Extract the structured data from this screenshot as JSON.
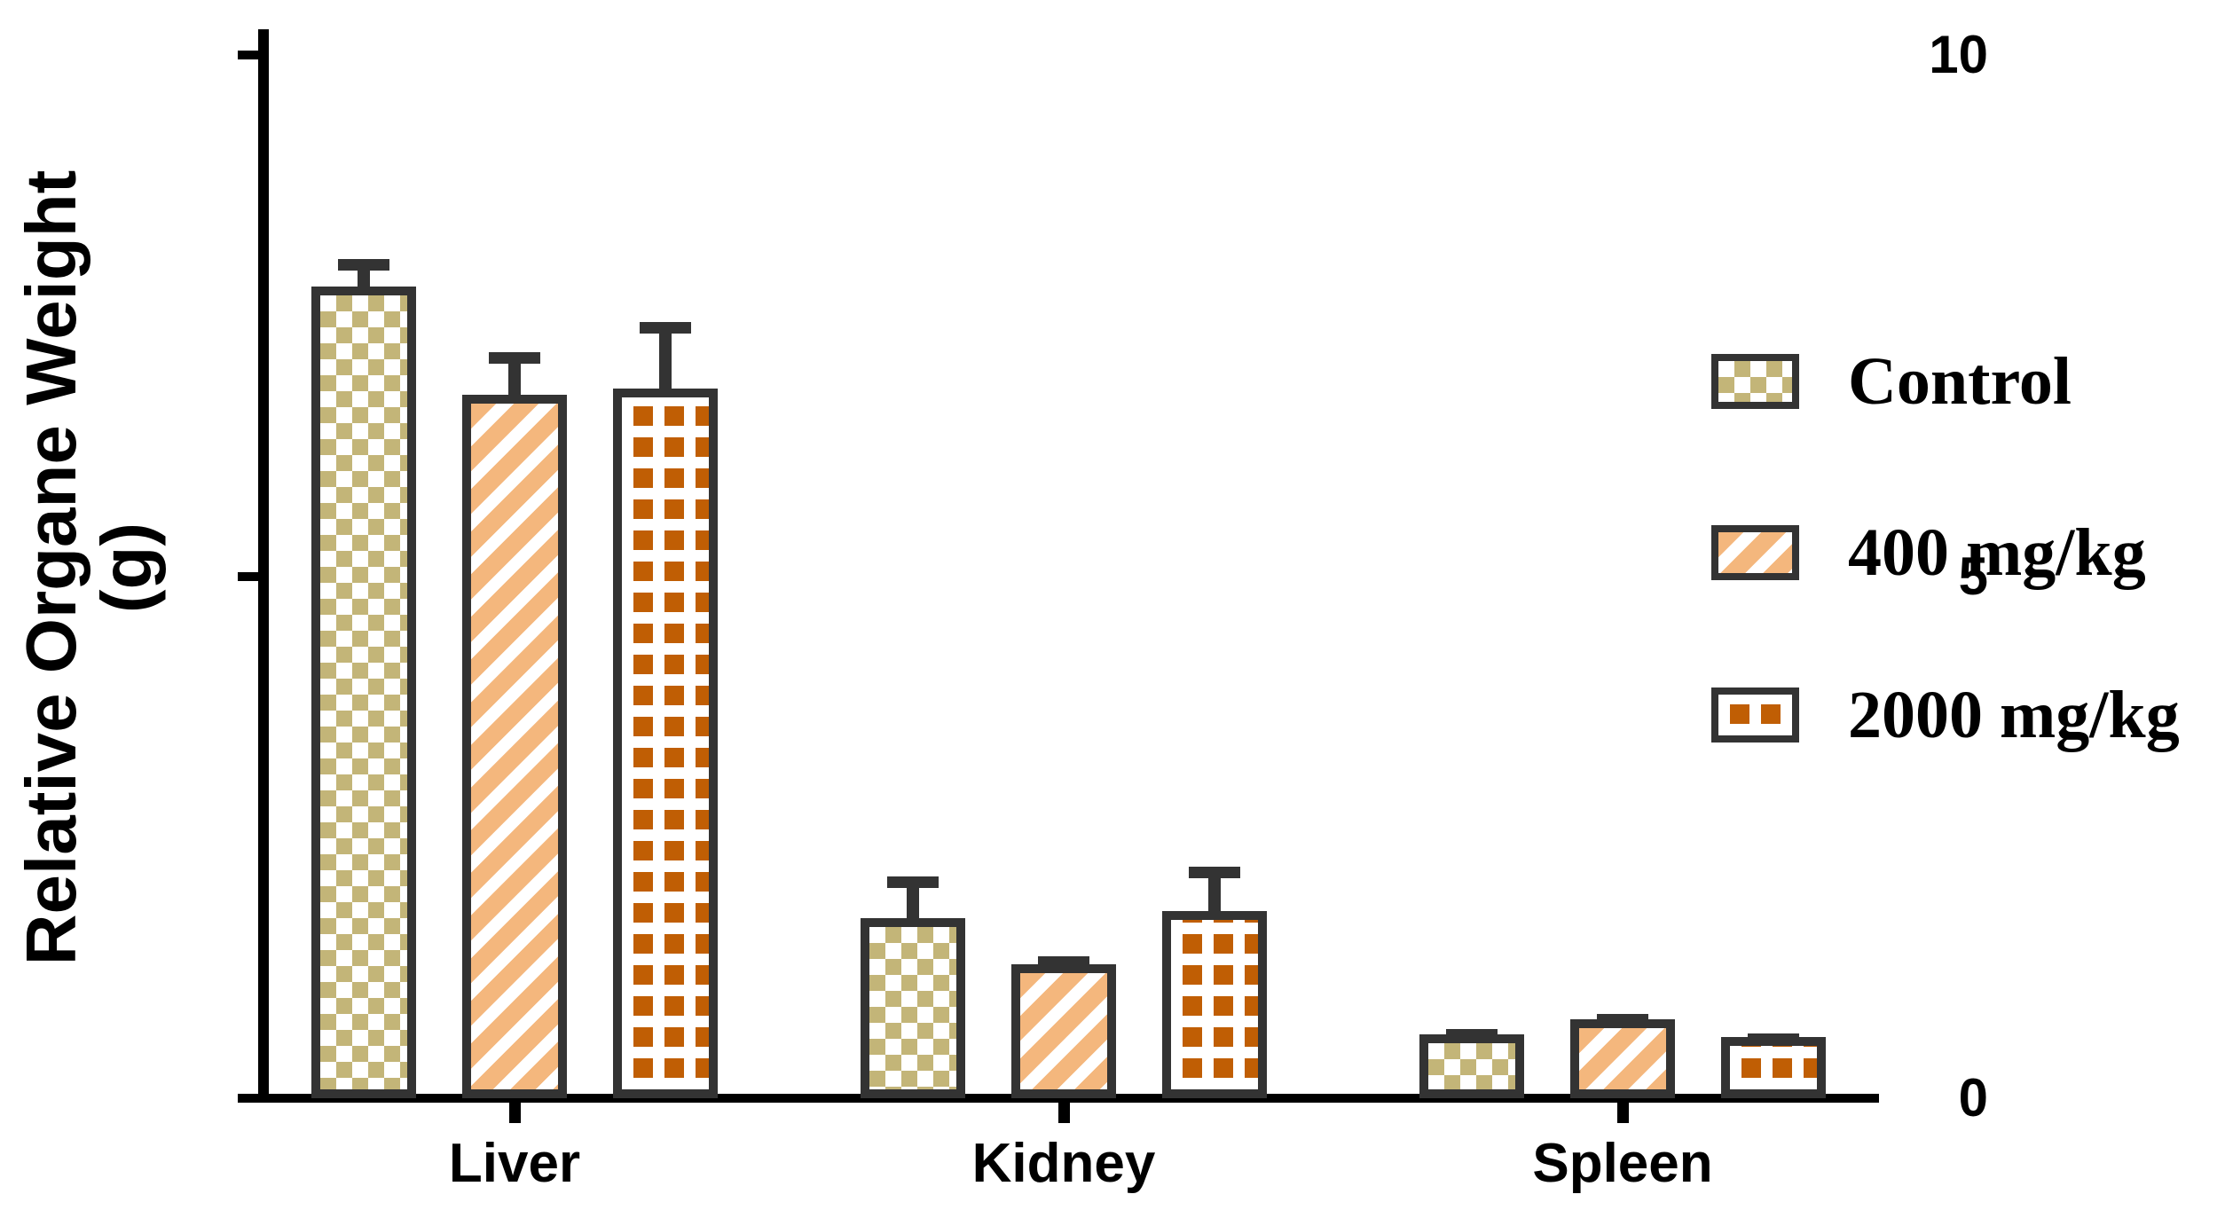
{
  "chart_data": {
    "type": "bar",
    "title": "",
    "xlabel": "",
    "ylabel_line1": "Relative Organe Weight",
    "ylabel_line2": "(g)",
    "ylim": [
      0,
      10
    ],
    "yticks": [
      0,
      5,
      10
    ],
    "ytick_labels": [
      "0",
      "5",
      "10"
    ],
    "grid": false,
    "legend_position": "right-center",
    "error_bars": "sd-above",
    "categories": [
      "Liver",
      "Kidney",
      "Spleen"
    ],
    "series": [
      {
        "name": "Control",
        "values": [
          7.78,
          1.73,
          0.61
        ],
        "errors": [
          0.26,
          0.4,
          0.05
        ],
        "pattern": "checkerboard",
        "color": "#c3b578"
      },
      {
        "name": "400 mg/kg",
        "values": [
          6.74,
          1.28,
          0.76
        ],
        "errors": [
          0.41,
          0.08,
          0.05
        ],
        "pattern": "diagonal-stripes",
        "color": "#f4b77d"
      },
      {
        "name": "2000 mg/kg",
        "values": [
          6.8,
          1.79,
          0.59
        ],
        "errors": [
          0.64,
          0.43,
          0.03
        ],
        "pattern": "square-grid",
        "color": "#c05e04"
      }
    ],
    "colors": {
      "axis": "#000000",
      "bar_border": "#333333",
      "error_bar": "#333333",
      "pattern_background": "#ffffff"
    }
  }
}
